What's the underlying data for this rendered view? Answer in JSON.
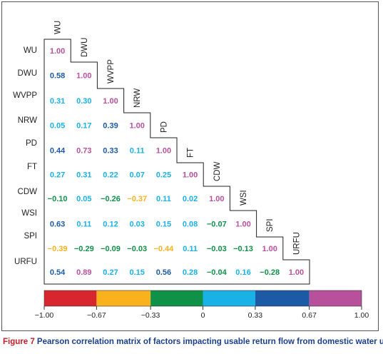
{
  "chart_data": {
    "type": "heatmap",
    "variables": [
      "WU",
      "DWU",
      "WVPP",
      "NRW",
      "PD",
      "FT",
      "CDW",
      "WSI",
      "SPI",
      "URFU"
    ],
    "matrix": [
      [
        1.0
      ],
      [
        0.58,
        1.0
      ],
      [
        0.31,
        0.3,
        1.0
      ],
      [
        0.05,
        0.17,
        0.39,
        1.0
      ],
      [
        0.44,
        0.73,
        0.33,
        0.11,
        1.0
      ],
      [
        0.27,
        0.31,
        0.22,
        0.07,
        0.25,
        1.0
      ],
      [
        -0.1,
        0.05,
        -0.26,
        -0.37,
        0.11,
        0.02,
        1.0
      ],
      [
        0.63,
        0.11,
        0.12,
        0.03,
        0.15,
        0.08,
        -0.07,
        1.0
      ],
      [
        -0.39,
        -0.29,
        -0.09,
        -0.03,
        -0.44,
        0.11,
        -0.03,
        -0.13,
        1.0
      ],
      [
        0.54,
        0.89,
        0.27,
        0.15,
        0.56,
        0.28,
        -0.04,
        0.16,
        -0.28,
        1.0
      ]
    ],
    "display": [
      [
        "1.00"
      ],
      [
        "0.58",
        "1.00"
      ],
      [
        "0.31",
        "0.30",
        "1.00"
      ],
      [
        "0.05",
        "0.17",
        "0.39",
        "1.00"
      ],
      [
        "0.44",
        "0.73",
        "0.33",
        "0.11",
        "1.00"
      ],
      [
        "0.27",
        "0.31",
        "0.22",
        "0.07",
        "0.25",
        "1.00"
      ],
      [
        "−0.10",
        "0.05",
        "−0.26",
        "−0.37",
        "0.11",
        "0.02",
        "1.00"
      ],
      [
        "0.63",
        "0.11",
        "0.12",
        "0.03",
        "0.15",
        "0.08",
        "−0.07",
        "1.00"
      ],
      [
        "−0.39",
        "−0.29",
        "−0.09",
        "−0.03",
        "−0.44",
        "0.11",
        "−0.03",
        "−0.13",
        "1.00"
      ],
      [
        "0.54",
        "0.89",
        "0.27",
        "0.15",
        "0.56",
        "0.28",
        "−0.04",
        "0.16",
        "−0.28",
        "1.00"
      ]
    ],
    "colorbar": {
      "tick_values": [
        -1.0,
        -0.67,
        -0.33,
        0,
        0.33,
        0.67,
        1.0
      ],
      "tick_labels": [
        "−1.00",
        "−0.67",
        "−0.33",
        "0",
        "0.33",
        "0.67",
        "1.00"
      ],
      "colors": [
        "#d7262e",
        "#f9b21d",
        "#0f9147",
        "#1ab1e7",
        "#1c5aa6",
        "#b8519c"
      ]
    }
  },
  "caption": {
    "lead": "Figure 7",
    "text": " Pearson correlation matrix of factors impacting usable return flow from domestic water use"
  }
}
